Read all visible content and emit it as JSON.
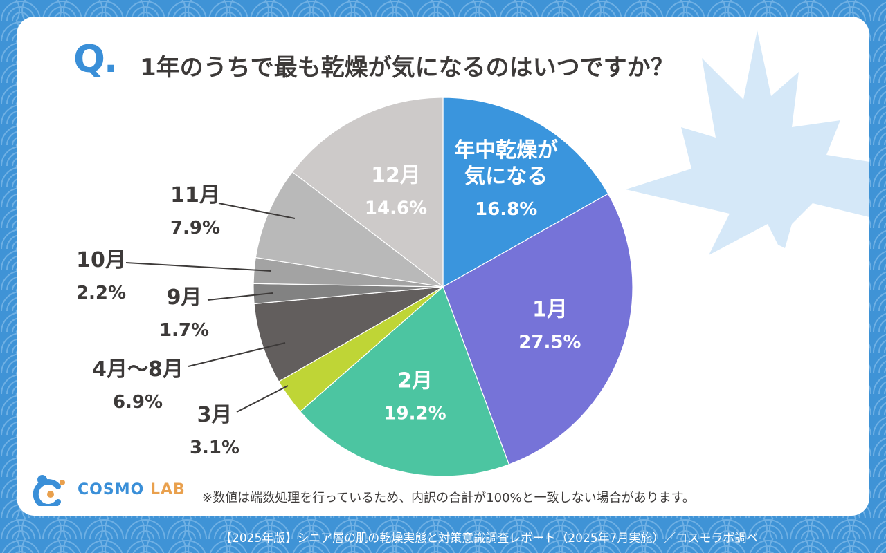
{
  "question_mark": "Q.",
  "title": "1年のうちで最も乾燥が気になるのはいつですか？",
  "note": "※数値は端数処理を行っているため、内訳の合計が100%と一致しない場合があります。",
  "footer": "【2025年版】シニア層の肌の乾燥実態と対策意識調査レポート（2025年7月実施）／コスモラボ調べ",
  "logo": {
    "name_main": "COSMO",
    "name_sub": "LAB"
  },
  "colors": {
    "background": "#3f93d6",
    "accent": "#3a8fd8",
    "text": "#3d3a39",
    "logo_orange": "#e9a04d"
  },
  "chart_data": {
    "type": "pie",
    "title": "1年のうちで最も乾燥が気になるのはいつですか？",
    "start": "12 o'clock, clockwise",
    "slices": [
      {
        "label": "年中乾燥が気になる",
        "lines": [
          "年中乾燥が",
          "気になる"
        ],
        "value": 16.8,
        "value_text": "16.8%",
        "color": "#3a95dd",
        "label_color": "#ffffff",
        "placement": "inside"
      },
      {
        "label": "1月",
        "lines": [
          "1月"
        ],
        "value": 27.5,
        "value_text": "27.5%",
        "color": "#7673d8",
        "label_color": "#ffffff",
        "placement": "inside"
      },
      {
        "label": "2月",
        "lines": [
          "2月"
        ],
        "value": 19.2,
        "value_text": "19.2%",
        "color": "#4cc5a1",
        "label_color": "#ffffff",
        "placement": "inside"
      },
      {
        "label": "3月",
        "lines": [
          "3月"
        ],
        "value": 3.1,
        "value_text": "3.1%",
        "color": "#bfd536",
        "label_color": "#3d3a39",
        "placement": "outside"
      },
      {
        "label": "4月～8月",
        "lines": [
          "4月～8月"
        ],
        "value": 6.9,
        "value_text": "6.9%",
        "color": "#625e5d",
        "label_color": "#3d3a39",
        "placement": "outside"
      },
      {
        "label": "9月",
        "lines": [
          "9月"
        ],
        "value": 1.7,
        "value_text": "1.7%",
        "color": "#828282",
        "label_color": "#3d3a39",
        "placement": "outside"
      },
      {
        "label": "10月",
        "lines": [
          "10月"
        ],
        "value": 2.2,
        "value_text": "2.2%",
        "color": "#a3a3a3",
        "label_color": "#3d3a39",
        "placement": "outside"
      },
      {
        "label": "11月",
        "lines": [
          "11月"
        ],
        "value": 7.9,
        "value_text": "7.9%",
        "color": "#b9b9b9",
        "label_color": "#3d3a39",
        "placement": "outside"
      },
      {
        "label": "12月",
        "lines": [
          "12月"
        ],
        "value": 14.6,
        "value_text": "14.6%",
        "color": "#cdcac9",
        "label_color": "#ffffff",
        "placement": "inside"
      }
    ]
  }
}
